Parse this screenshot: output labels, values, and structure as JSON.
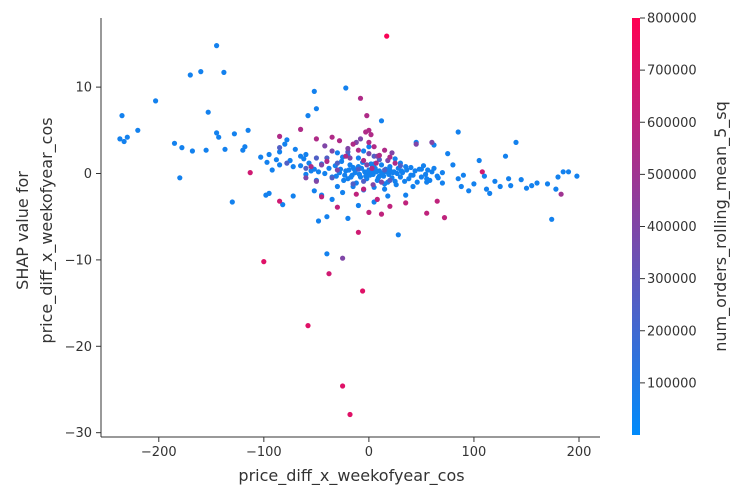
{
  "chart_data": {
    "type": "scatter",
    "title": "",
    "xlabel": "price_diff_x_weekofyear_cos",
    "ylabel_lines": [
      "SHAP value for",
      "price_diff_x_weekofyear_cos"
    ],
    "xlim": [
      -255,
      220
    ],
    "ylim": [
      -30.5,
      18
    ],
    "x_ticks": [
      -200,
      -100,
      0,
      100,
      200
    ],
    "x_tick_labels": [
      "−200",
      "−100",
      "0",
      "100",
      "200"
    ],
    "y_ticks": [
      -30,
      -20,
      -10,
      0,
      10
    ],
    "y_tick_labels": [
      "−30",
      "−20",
      "−10",
      "0",
      "10"
    ],
    "grid": false,
    "colorbar": {
      "label": "num_orders_rolling_mean_5_sq",
      "min": 0,
      "max": 800000,
      "ticks": [
        100000,
        200000,
        300000,
        400000,
        500000,
        600000,
        700000,
        800000
      ],
      "tick_labels": [
        "100000",
        "200000",
        "300000",
        "400000",
        "500000",
        "600000",
        "700000",
        "800000"
      ],
      "colors": [
        "#008bfb",
        "#ff0052"
      ]
    },
    "points": [
      [
        -145,
        14.8,
        60000
      ],
      [
        -160,
        11.8,
        60000
      ],
      [
        -170,
        11.4,
        60000
      ],
      [
        -138,
        11.7,
        60000
      ],
      [
        -203,
        8.4,
        60000
      ],
      [
        -235,
        6.7,
        60000
      ],
      [
        -230,
        4.2,
        60000
      ],
      [
        -220,
        5.0,
        60000
      ],
      [
        -237,
        4.0,
        60000
      ],
      [
        -233,
        3.7,
        60000
      ],
      [
        -153,
        7.1,
        60000
      ],
      [
        -145,
        4.7,
        60000
      ],
      [
        -143,
        4.2,
        60000
      ],
      [
        -128,
        4.6,
        60000
      ],
      [
        -115,
        5.0,
        60000
      ],
      [
        -185,
        3.5,
        60000
      ],
      [
        -178,
        3.0,
        60000
      ],
      [
        -168,
        2.6,
        60000
      ],
      [
        -155,
        2.7,
        60000
      ],
      [
        -137,
        2.8,
        60000
      ],
      [
        -120,
        2.7,
        60000
      ],
      [
        -118,
        3.1,
        60000
      ],
      [
        -180,
        -0.5,
        60000
      ],
      [
        -130,
        -3.3,
        60000
      ],
      [
        -103,
        1.9,
        60000
      ],
      [
        -97,
        1.3,
        60000
      ],
      [
        -95,
        2.2,
        60000
      ],
      [
        -92,
        0.4,
        60000
      ],
      [
        -85,
        1.0,
        60000
      ],
      [
        -98,
        -2.5,
        60000
      ],
      [
        -95,
        -2.3,
        60000
      ],
      [
        -88,
        1.6,
        60000
      ],
      [
        -85,
        2.5,
        60000
      ],
      [
        -80,
        3.4,
        60000
      ],
      [
        -78,
        3.9,
        60000
      ],
      [
        -75,
        1.5,
        60000
      ],
      [
        -72,
        0.8,
        60000
      ],
      [
        -70,
        2.8,
        60000
      ],
      [
        -65,
        2.0,
        60000
      ],
      [
        -60,
        2.2,
        60000
      ],
      [
        -58,
        6.7,
        60000
      ],
      [
        -52,
        9.5,
        60000
      ],
      [
        -50,
        7.5,
        60000
      ],
      [
        -22,
        9.9,
        60000
      ],
      [
        -60,
        -0.1,
        60000
      ],
      [
        -55,
        0.3,
        60000
      ],
      [
        -50,
        -0.8,
        60000
      ],
      [
        -45,
        -2.5,
        60000
      ],
      [
        -40,
        -5.0,
        60000
      ],
      [
        -35,
        -3.0,
        60000
      ],
      [
        -30,
        -1.5,
        60000
      ],
      [
        -25,
        -2.2,
        60000
      ],
      [
        -20,
        -0.6,
        60000
      ],
      [
        -15,
        0.7,
        60000
      ],
      [
        -10,
        1.8,
        60000
      ],
      [
        -5,
        2.6,
        60000
      ],
      [
        0,
        3.1,
        60000
      ],
      [
        5,
        1.1,
        60000
      ],
      [
        10,
        -0.3,
        60000
      ],
      [
        15,
        -1.2,
        60000
      ],
      [
        20,
        0.4,
        60000
      ],
      [
        25,
        -0.9,
        60000
      ],
      [
        28,
        -7.1,
        60000
      ],
      [
        12,
        6.1,
        60000
      ],
      [
        30,
        1.2,
        60000
      ],
      [
        35,
        0.8,
        60000
      ],
      [
        40,
        -0.2,
        60000
      ],
      [
        45,
        3.6,
        60000
      ],
      [
        50,
        0.5,
        60000
      ],
      [
        55,
        -0.6,
        60000
      ],
      [
        60,
        0.2,
        60000
      ],
      [
        62,
        3.3,
        60000
      ],
      [
        65,
        -0.3,
        60000
      ],
      [
        70,
        0.1,
        60000
      ],
      [
        75,
        2.3,
        60000
      ],
      [
        80,
        1.0,
        60000
      ],
      [
        85,
        4.8,
        60000
      ],
      [
        85,
        -0.6,
        60000
      ],
      [
        88,
        -1.5,
        60000
      ],
      [
        90,
        -0.2,
        60000
      ],
      [
        95,
        -2.0,
        60000
      ],
      [
        100,
        -1.2,
        60000
      ],
      [
        105,
        1.5,
        60000
      ],
      [
        110,
        -0.3,
        60000
      ],
      [
        112,
        -1.8,
        60000
      ],
      [
        115,
        -2.3,
        60000
      ],
      [
        120,
        -0.9,
        60000
      ],
      [
        125,
        -1.5,
        60000
      ],
      [
        130,
        2.0,
        60000
      ],
      [
        133,
        -0.6,
        60000
      ],
      [
        135,
        -1.4,
        60000
      ],
      [
        140,
        3.6,
        60000
      ],
      [
        145,
        -0.7,
        60000
      ],
      [
        150,
        -1.7,
        60000
      ],
      [
        155,
        -1.4,
        60000
      ],
      [
        160,
        -1.1,
        60000
      ],
      [
        170,
        -1.2,
        60000
      ],
      [
        174,
        -5.3,
        60000
      ],
      [
        180,
        -0.4,
        60000
      ],
      [
        185,
        0.2,
        60000
      ],
      [
        190,
        0.2,
        60000
      ],
      [
        198,
        -0.3,
        60000
      ],
      [
        178,
        -1.8,
        60000
      ],
      [
        -82,
        -3.6,
        60000
      ],
      [
        -72,
        -2.6,
        60000
      ],
      [
        -52,
        -2.0,
        60000
      ],
      [
        -48,
        -5.5,
        60000
      ],
      [
        -40,
        -9.3,
        60000
      ],
      [
        -20,
        -5.2,
        60000
      ],
      [
        -10,
        -3.7,
        60000
      ],
      [
        5,
        -3.3,
        60000
      ],
      [
        18,
        -2.6,
        60000
      ],
      [
        35,
        -2.5,
        60000
      ],
      [
        42,
        -1.5,
        60000
      ],
      [
        55,
        -1.0,
        60000
      ],
      [
        -65,
        0.9,
        60000
      ],
      [
        -62,
        1.7,
        60000
      ],
      [
        -57,
        1.2,
        60000
      ],
      [
        -52,
        0.5,
        60000
      ],
      [
        -48,
        0.2,
        60000
      ],
      [
        -45,
        1.1,
        60000
      ],
      [
        -42,
        0.0,
        60000
      ],
      [
        -38,
        0.6,
        60000
      ],
      [
        -35,
        -0.4,
        60000
      ],
      [
        -32,
        0.9,
        60000
      ],
      [
        -28,
        0.1,
        60000
      ],
      [
        -26,
        1.4,
        60000
      ],
      [
        -24,
        -0.8,
        60000
      ],
      [
        -22,
        0.3,
        60000
      ],
      [
        -18,
        1.0,
        60000
      ],
      [
        -16,
        -0.2,
        60000
      ],
      [
        -14,
        0.5,
        60000
      ],
      [
        -12,
        -1.1,
        60000
      ],
      [
        -10,
        0.8,
        60000
      ],
      [
        -8,
        -0.4,
        60000
      ],
      [
        -6,
        1.3,
        60000
      ],
      [
        -4,
        0.2,
        60000
      ],
      [
        -2,
        -0.6,
        60000
      ],
      [
        0,
        0.4,
        60000
      ],
      [
        2,
        1.1,
        60000
      ],
      [
        4,
        -0.1,
        60000
      ],
      [
        6,
        0.6,
        60000
      ],
      [
        8,
        -0.8,
        60000
      ],
      [
        10,
        0.3,
        60000
      ],
      [
        12,
        1.0,
        60000
      ],
      [
        14,
        -0.3,
        60000
      ],
      [
        16,
        0.5,
        60000
      ],
      [
        18,
        -1.0,
        60000
      ],
      [
        20,
        0.8,
        60000
      ],
      [
        22,
        -0.5,
        60000
      ],
      [
        24,
        0.2,
        60000
      ],
      [
        26,
        -1.3,
        60000
      ],
      [
        28,
        0.6,
        60000
      ],
      [
        30,
        -0.4,
        60000
      ],
      [
        32,
        0.1,
        60000
      ],
      [
        34,
        -0.9,
        60000
      ],
      [
        36,
        0.4,
        60000
      ],
      [
        38,
        -0.6,
        60000
      ],
      [
        40,
        0.7,
        60000
      ],
      [
        42,
        -0.2,
        60000
      ],
      [
        44,
        0.3,
        60000
      ],
      [
        46,
        -1.0,
        60000
      ],
      [
        48,
        0.5,
        60000
      ],
      [
        50,
        -0.4,
        60000
      ],
      [
        52,
        0.9,
        60000
      ],
      [
        54,
        -0.1,
        60000
      ],
      [
        56,
        0.4,
        60000
      ],
      [
        58,
        -0.8,
        60000
      ],
      [
        62,
        0.6,
        60000
      ],
      [
        66,
        -0.5,
        60000
      ],
      [
        70,
        -1.1,
        60000
      ],
      [
        -1,
        0.1,
        60000
      ],
      [
        1,
        -0.2,
        60000
      ],
      [
        3,
        0.3,
        60000
      ],
      [
        -3,
        -0.3,
        60000
      ],
      [
        -7,
        0.6,
        60000
      ],
      [
        7,
        0.2,
        60000
      ],
      [
        9,
        -0.5,
        60000
      ],
      [
        -9,
        -0.1,
        60000
      ],
      [
        13,
        0.0,
        60000
      ],
      [
        -13,
        0.1,
        60000
      ],
      [
        17,
        0.2,
        60000
      ],
      [
        -17,
        -0.4,
        60000
      ],
      [
        19,
        -0.1,
        60000
      ],
      [
        -19,
        0.4,
        60000
      ],
      [
        23,
        0.1,
        60000
      ],
      [
        -23,
        -0.2,
        60000
      ],
      [
        27,
        0.0,
        60000
      ],
      [
        -27,
        0.5,
        60000
      ],
      [
        31,
        0.3,
        60000
      ],
      [
        -31,
        -0.3,
        60000
      ],
      [
        -15,
        -1.5,
        60000
      ],
      [
        15,
        -1.8,
        60000
      ],
      [
        -5,
        -1.9,
        60000
      ],
      [
        5,
        -1.6,
        60000
      ],
      [
        -25,
        1.9,
        60000
      ],
      [
        -30,
        2.4,
        60000
      ],
      [
        -20,
        2.1,
        60000
      ],
      [
        25,
        1.7,
        60000
      ],
      [
        -40,
        1.8,
        250000
      ],
      [
        -30,
        1.2,
        250000
      ],
      [
        -20,
        2.5,
        250000
      ],
      [
        -10,
        0.5,
        250000
      ],
      [
        10,
        1.6,
        250000
      ],
      [
        20,
        -0.8,
        250000
      ],
      [
        -60,
        0.6,
        250000
      ],
      [
        -85,
        3.0,
        250000
      ],
      [
        -50,
        1.8,
        250000
      ],
      [
        -15,
        -1.2,
        250000
      ],
      [
        5,
        2.0,
        250000
      ],
      [
        30,
        0.9,
        250000
      ],
      [
        -78,
        1.2,
        250000
      ],
      [
        -35,
        -0.5,
        250000
      ],
      [
        -5,
        -0.9,
        250000
      ],
      [
        15,
        0.4,
        250000
      ],
      [
        -42,
        3.2,
        400000
      ],
      [
        -25,
        -9.8,
        400000
      ],
      [
        -20,
        2.9,
        400000
      ],
      [
        -12,
        3.6,
        400000
      ],
      [
        -8,
        4.0,
        400000
      ],
      [
        0,
        2.3,
        400000
      ],
      [
        8,
        2.0,
        400000
      ],
      [
        18,
        1.5,
        400000
      ],
      [
        -45,
        1.0,
        400000
      ],
      [
        -30,
        0.4,
        400000
      ],
      [
        -2,
        1.0,
        400000
      ],
      [
        12,
        -1.0,
        400000
      ],
      [
        -60,
        -0.5,
        400000
      ],
      [
        45,
        3.4,
        400000
      ],
      [
        60,
        3.6,
        400000
      ],
      [
        -50,
        -0.9,
        400000
      ],
      [
        -35,
        2.6,
        400000
      ],
      [
        22,
        2.4,
        400000
      ],
      [
        -18,
        1.8,
        400000
      ],
      [
        4,
        -1.3,
        400000
      ],
      [
        -85,
        4.3,
        550000
      ],
      [
        -65,
        5.1,
        550000
      ],
      [
        -35,
        4.2,
        550000
      ],
      [
        -28,
        3.8,
        550000
      ],
      [
        -8,
        8.7,
        550000
      ],
      [
        -2,
        6.7,
        550000
      ],
      [
        0,
        5.0,
        550000
      ],
      [
        2,
        4.5,
        550000
      ],
      [
        -15,
        3.4,
        550000
      ],
      [
        -10,
        2.7,
        550000
      ],
      [
        5,
        3.1,
        550000
      ],
      [
        10,
        2.1,
        550000
      ],
      [
        15,
        2.7,
        550000
      ],
      [
        20,
        1.9,
        550000
      ],
      [
        25,
        1.2,
        550000
      ],
      [
        -22,
        2.0,
        550000
      ],
      [
        -5,
        1.5,
        550000
      ],
      [
        0,
        3.6,
        550000
      ],
      [
        -3,
        4.8,
        550000
      ],
      [
        3,
        0.6,
        550000
      ],
      [
        -50,
        4.0,
        550000
      ],
      [
        -40,
        1.4,
        550000
      ],
      [
        -55,
        0.8,
        550000
      ],
      [
        7,
        1.2,
        550000
      ],
      [
        17,
        15.9,
        780000
      ],
      [
        -100,
        -10.2,
        700000
      ],
      [
        -58,
        -17.6,
        700000
      ],
      [
        -25,
        -24.6,
        700000
      ],
      [
        -18,
        -27.9,
        700000
      ],
      [
        -6,
        -13.6,
        700000
      ],
      [
        -10,
        -6.8,
        650000
      ],
      [
        -38,
        -11.6,
        650000
      ],
      [
        -113,
        0.1,
        650000
      ],
      [
        -85,
        -3.2,
        650000
      ],
      [
        -45,
        -2.7,
        600000
      ],
      [
        -30,
        -3.9,
        600000
      ],
      [
        -12,
        -2.4,
        600000
      ],
      [
        0,
        -4.5,
        600000
      ],
      [
        12,
        -4.7,
        600000
      ],
      [
        20,
        -3.8,
        600000
      ],
      [
        35,
        -3.4,
        600000
      ],
      [
        55,
        -4.6,
        600000
      ],
      [
        65,
        -3.2,
        600000
      ],
      [
        72,
        -5.1,
        600000
      ],
      [
        108,
        0.2,
        650000
      ],
      [
        183,
        -2.4,
        500000
      ],
      [
        -5,
        -1.8,
        600000
      ],
      [
        8,
        -3.0,
        600000
      ]
    ]
  }
}
